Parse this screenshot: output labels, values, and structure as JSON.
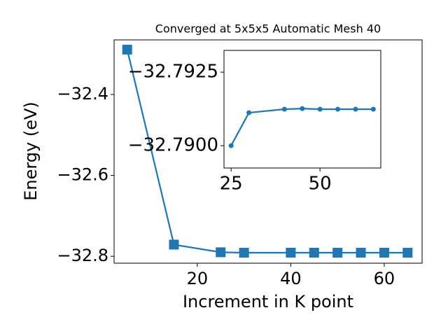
{
  "chart_data": [
    {
      "type": "line",
      "title": "Converged at 5x5x5 Automatic Mesh 40",
      "xlabel": "Increment in K point",
      "ylabel": "Energy (eV)",
      "x": [
        5,
        15,
        25,
        30,
        40,
        45,
        50,
        55,
        60,
        65
      ],
      "series": [
        {
          "color": "#1f77b4",
          "marker": "square",
          "values": [
            -32.289,
            -32.771,
            -32.79,
            -32.791,
            -32.791,
            -32.791,
            -32.791,
            -32.791,
            -32.791,
            -32.791
          ]
        }
      ],
      "xlim": [
        2.2,
        68.1
      ],
      "ylim": [
        -32.817,
        -32.265
      ],
      "xticks": [
        20,
        40,
        60
      ],
      "yticks": [
        {
          "value": -32.4,
          "label": "−32.4"
        },
        {
          "value": -32.6,
          "label": "−32.6"
        },
        {
          "value": -32.8,
          "label": "−32.8"
        }
      ]
    },
    {
      "type": "line",
      "x": [
        25,
        30,
        40,
        45,
        50,
        55,
        60,
        65
      ],
      "series": [
        {
          "color": "#1f77b4",
          "marker": "circle",
          "values": [
            -32.79,
            -32.79112,
            -32.79124,
            -32.79126,
            -32.79124,
            -32.79124,
            -32.79124,
            -32.79124
          ]
        }
      ],
      "xlim": [
        23.0,
        67.1
      ],
      "ylim": [
        -32.78924,
        -32.79324
      ],
      "xticks": [
        25,
        50
      ],
      "yticks": [
        {
          "value": -32.7925,
          "label": "−32.7925"
        },
        {
          "value": -32.79,
          "label": "−32.7900"
        }
      ]
    }
  ]
}
